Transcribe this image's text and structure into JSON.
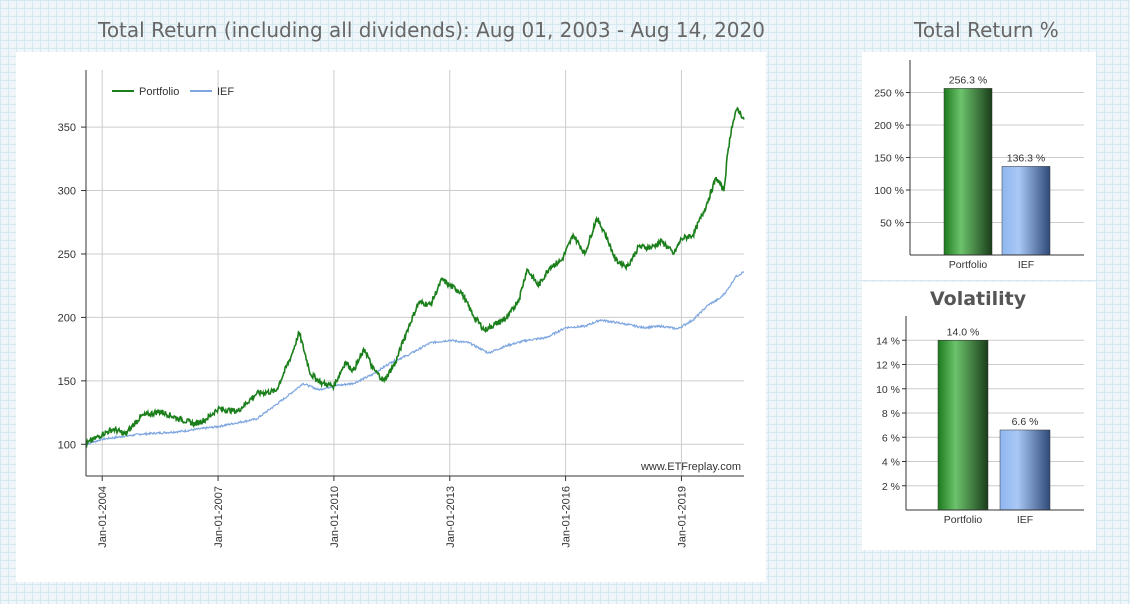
{
  "main_chart": {
    "title": "Total Return (including all dividends): Aug 01, 2003 - Aug 14, 2020",
    "watermark": "www.ETFreplay.com",
    "chart_data": {
      "type": "line",
      "ylim": [
        75,
        395
      ],
      "xlim": [
        2003.58,
        2020.62
      ],
      "y_ticks": [
        100,
        150,
        200,
        250,
        300,
        350
      ],
      "y_tick_labels": [
        "100",
        "150",
        "200",
        "250",
        "300",
        "350"
      ],
      "x_ticks": [
        2004.0,
        2007.0,
        2010.0,
        2013.0,
        2016.0,
        2019.0
      ],
      "x_tick_labels": [
        "Jan-01-2004",
        "Jan-01-2007",
        "Jan-01-2010",
        "Jan-01-2013",
        "Jan-01-2016",
        "Jan-01-2019"
      ],
      "legend": "top-left",
      "series": [
        {
          "name": "Portfolio",
          "color": "#1a7f1a",
          "x": [
            2003.58,
            2004.0,
            2004.3,
            2004.6,
            2005.0,
            2005.5,
            2006.0,
            2006.4,
            2006.7,
            2007.0,
            2007.5,
            2008.0,
            2008.5,
            2008.9,
            2009.1,
            2009.4,
            2009.7,
            2010.0,
            2010.3,
            2010.5,
            2010.8,
            2011.0,
            2011.3,
            2011.6,
            2011.9,
            2012.2,
            2012.5,
            2012.8,
            2013.0,
            2013.3,
            2013.6,
            2013.9,
            2014.2,
            2014.5,
            2014.8,
            2015.0,
            2015.3,
            2015.6,
            2015.9,
            2016.2,
            2016.5,
            2016.8,
            2017.0,
            2017.3,
            2017.6,
            2017.9,
            2018.2,
            2018.5,
            2018.8,
            2019.0,
            2019.3,
            2019.6,
            2019.9,
            2020.1,
            2020.2,
            2020.3,
            2020.45,
            2020.62
          ],
          "values": [
            100,
            108,
            112,
            108,
            122,
            126,
            120,
            116,
            120,
            128,
            126,
            140,
            142,
            170,
            188,
            155,
            148,
            146,
            165,
            158,
            175,
            160,
            150,
            165,
            190,
            212,
            210,
            230,
            225,
            220,
            202,
            190,
            195,
            200,
            215,
            238,
            225,
            240,
            245,
            265,
            250,
            278,
            268,
            245,
            240,
            256,
            255,
            260,
            250,
            262,
            265,
            285,
            310,
            300,
            330,
            350,
            365,
            356
          ]
        },
        {
          "name": "IEF",
          "color": "#7ea6e0",
          "x": [
            2003.58,
            2004.0,
            2004.5,
            2005.0,
            2006.0,
            2007.0,
            2008.0,
            2008.8,
            2009.2,
            2009.6,
            2010.0,
            2010.5,
            2011.0,
            2011.5,
            2011.9,
            2012.5,
            2013.0,
            2013.5,
            2014.0,
            2014.5,
            2015.0,
            2015.5,
            2016.0,
            2016.5,
            2016.9,
            2017.5,
            2018.0,
            2018.5,
            2018.9,
            2019.3,
            2019.7,
            2020.0,
            2020.2,
            2020.4,
            2020.62
          ],
          "values": [
            100,
            104,
            106,
            108,
            110,
            114,
            120,
            138,
            148,
            143,
            146,
            148,
            155,
            165,
            170,
            180,
            182,
            180,
            172,
            178,
            182,
            184,
            192,
            193,
            198,
            195,
            192,
            193,
            191,
            198,
            210,
            215,
            222,
            232,
            236
          ]
        }
      ]
    }
  },
  "return_chart": {
    "title": "Total Return %",
    "chart_data": {
      "type": "bar",
      "categories": [
        "Portfolio",
        "IEF"
      ],
      "values": [
        256.3,
        136.3
      ],
      "value_labels": [
        "256.3 %",
        "136.3 %"
      ],
      "ylim": [
        0,
        300
      ],
      "y_ticks": [
        50,
        100,
        150,
        200,
        250
      ],
      "y_tick_labels": [
        "50 %",
        "100 %",
        "150 %",
        "200 %",
        "250 %"
      ]
    }
  },
  "volatility_chart": {
    "title": "Volatility",
    "chart_data": {
      "type": "bar",
      "categories": [
        "Portfolio",
        "IEF"
      ],
      "values": [
        14.0,
        6.6
      ],
      "value_labels": [
        "14.0 %",
        "6.6 %"
      ],
      "ylim": [
        0,
        16
      ],
      "y_ticks": [
        2,
        4,
        6,
        8,
        10,
        12,
        14
      ],
      "y_tick_labels": [
        "2 %",
        "4 %",
        "6 %",
        "8 %",
        "10 %",
        "12 %",
        "14 %"
      ]
    }
  }
}
